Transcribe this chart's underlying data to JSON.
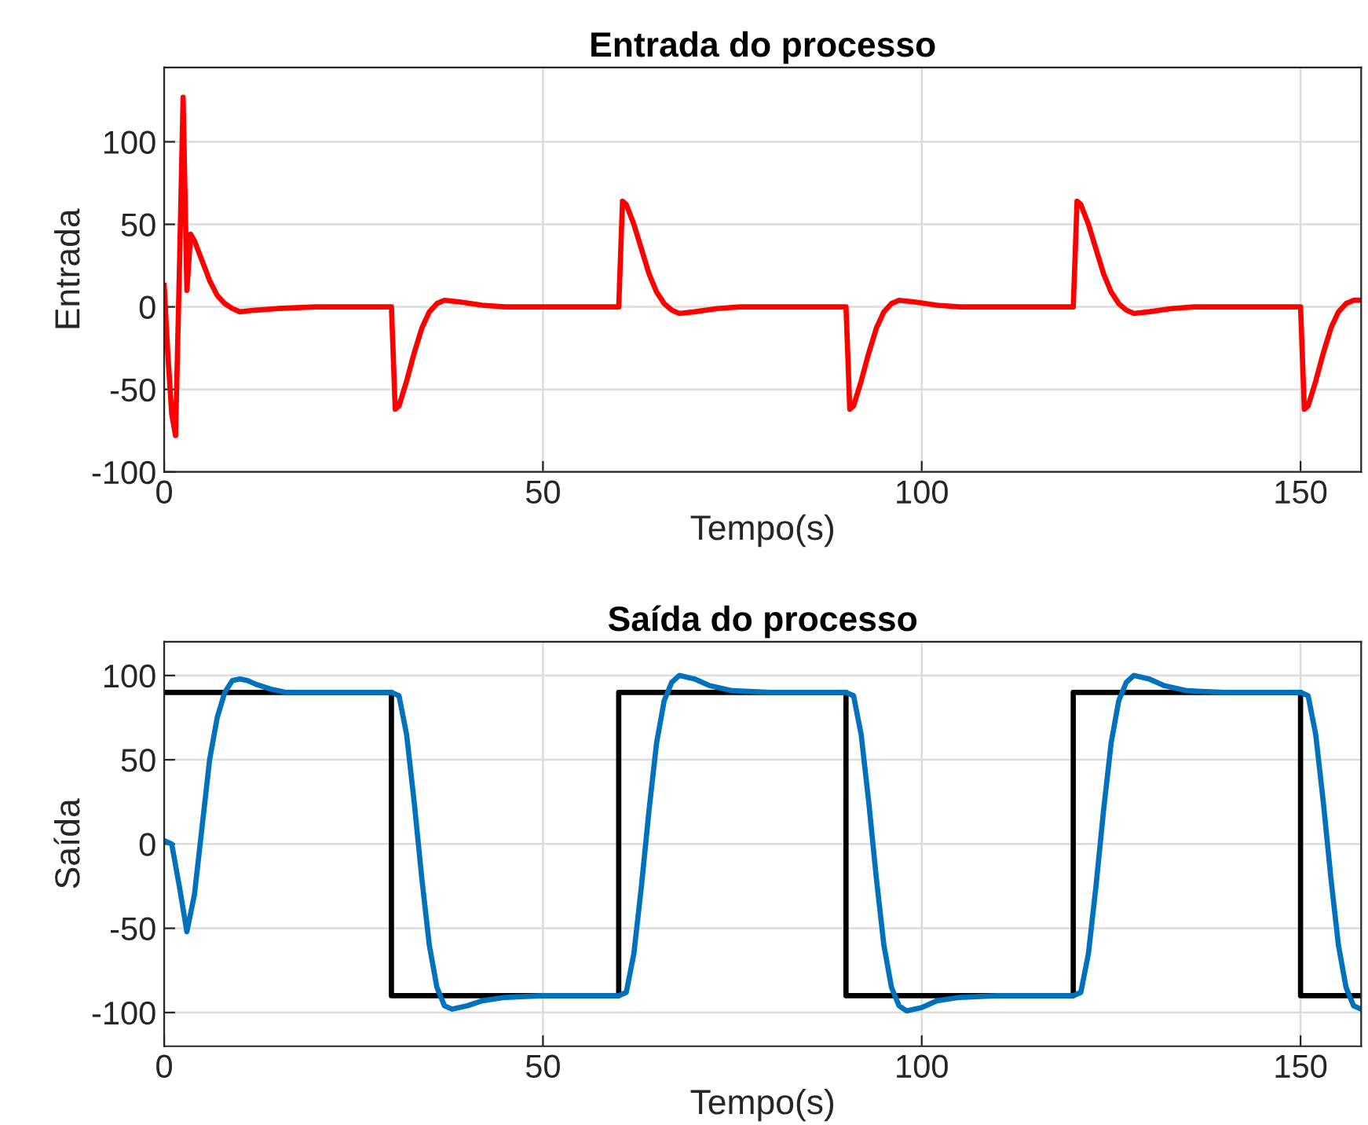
{
  "chart_data": [
    {
      "type": "line",
      "title": "Entrada do processo",
      "xlabel": "Tempo(s)",
      "ylabel": "Entrada",
      "xlim": [
        0,
        158
      ],
      "xticks": [
        0,
        50,
        100,
        150
      ],
      "ylim": [
        -100,
        145
      ],
      "yticks": [
        -100,
        -50,
        0,
        50,
        100
      ],
      "grid": true,
      "legend": false,
      "line_style": "solid",
      "marker": "none",
      "series": [
        {
          "color": "#ff0000",
          "x": [
            0,
            0.5,
            1,
            1.5,
            2,
            2.5,
            3,
            3.5,
            4,
            5,
            6,
            7,
            8,
            9,
            10,
            12,
            15,
            20,
            30,
            30.5,
            31,
            32,
            33,
            34,
            35,
            36,
            37,
            39,
            42,
            45,
            60,
            60.5,
            61,
            62,
            63,
            64,
            65,
            66,
            67,
            68,
            70,
            73,
            76,
            90,
            90.5,
            91,
            92,
            93,
            94,
            95,
            96,
            97,
            99,
            102,
            105,
            120,
            120.5,
            121,
            122,
            123,
            124,
            125,
            126,
            127,
            128,
            130,
            133,
            136,
            150,
            150.5,
            151,
            152,
            153,
            154,
            155,
            156,
            157,
            158
          ],
          "values": [
            13,
            -30,
            -65,
            -78,
            20,
            127,
            10,
            44,
            40,
            28,
            16,
            7,
            2,
            -1,
            -3,
            -2,
            -1,
            0,
            0,
            -62,
            -60,
            -45,
            -28,
            -13,
            -3,
            2,
            4,
            3,
            1,
            0,
            0,
            64,
            62,
            50,
            35,
            20,
            9,
            2,
            -2,
            -4,
            -3,
            -1,
            0,
            0,
            -62,
            -60,
            -45,
            -28,
            -13,
            -3,
            2,
            4,
            3,
            1,
            0,
            0,
            64,
            62,
            50,
            35,
            20,
            9,
            2,
            -2,
            -4,
            -3,
            -1,
            0,
            0,
            -62,
            -60,
            -45,
            -28,
            -13,
            -3,
            2,
            4,
            4
          ]
        }
      ]
    },
    {
      "type": "line",
      "title": "Saída do processo",
      "xlabel": "Tempo(s)",
      "ylabel": "Saída",
      "xlim": [
        0,
        158
      ],
      "xticks": [
        0,
        50,
        100,
        150
      ],
      "ylim": [
        -120,
        120
      ],
      "yticks": [
        -100,
        -50,
        0,
        50,
        100
      ],
      "grid": true,
      "legend": false,
      "line_style": "solid",
      "marker": "none",
      "series": [
        {
          "color": "#000000",
          "x": [
            0,
            30,
            30,
            60,
            60,
            90,
            90,
            120,
            120,
            150,
            150,
            158
          ],
          "values": [
            90,
            90,
            -90,
            -90,
            90,
            90,
            -90,
            -90,
            90,
            90,
            -90,
            -90
          ]
        },
        {
          "color": "#0072bd",
          "x": [
            0,
            1,
            2,
            3,
            4,
            5,
            6,
            7,
            8,
            9,
            10,
            11,
            12,
            14,
            16,
            20,
            30,
            31,
            32,
            33,
            34,
            35,
            36,
            37,
            38,
            40,
            42,
            45,
            50,
            60,
            61,
            62,
            63,
            64,
            65,
            66,
            67,
            68,
            70,
            72,
            75,
            80,
            90,
            91,
            92,
            93,
            94,
            95,
            96,
            97,
            98,
            100,
            102,
            105,
            110,
            120,
            121,
            122,
            123,
            124,
            125,
            126,
            127,
            128,
            130,
            132,
            135,
            140,
            150,
            151,
            152,
            153,
            154,
            155,
            156,
            157,
            158
          ],
          "values": [
            2,
            0,
            -25,
            -52,
            -30,
            10,
            50,
            75,
            90,
            97,
            98,
            97,
            95,
            92,
            90,
            90,
            90,
            88,
            65,
            25,
            -20,
            -60,
            -85,
            -96,
            -98,
            -96,
            -93,
            -91,
            -90,
            -90,
            -88,
            -65,
            -25,
            20,
            60,
            85,
            96,
            100,
            98,
            94,
            91,
            90,
            90,
            88,
            65,
            25,
            -20,
            -60,
            -85,
            -96,
            -99,
            -97,
            -93,
            -91,
            -90,
            -90,
            -88,
            -65,
            -25,
            20,
            60,
            85,
            96,
            100,
            98,
            94,
            91,
            90,
            90,
            88,
            65,
            25,
            -20,
            -60,
            -85,
            -96,
            -98
          ]
        }
      ]
    }
  ]
}
